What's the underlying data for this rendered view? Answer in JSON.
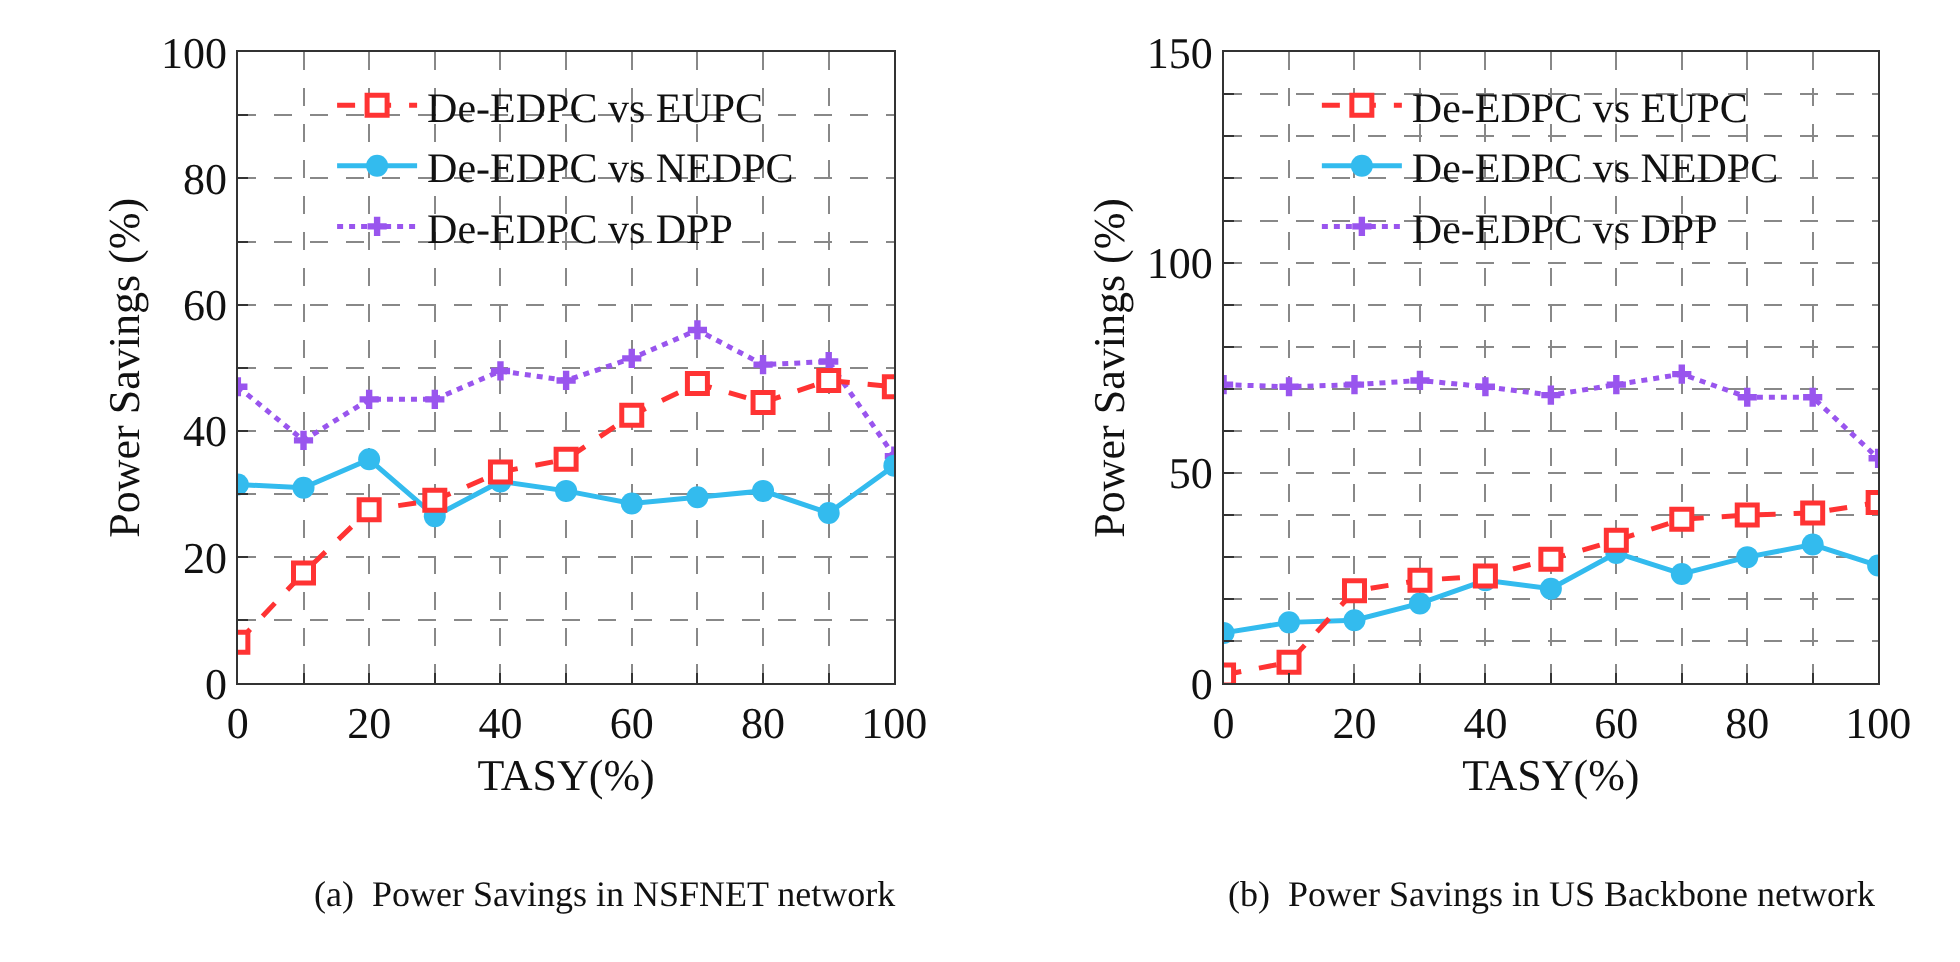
{
  "chart_data": [
    {
      "type": "line",
      "xlabel": "TASY(%)",
      "ylabel": "Power Savings (%)",
      "annotations": [
        "(a)  Power Savings in NSFNET network"
      ],
      "x": [
        0,
        10,
        20,
        30,
        40,
        50,
        60,
        70,
        80,
        90,
        100
      ],
      "xlim": [
        0,
        100
      ],
      "ylim": [
        0,
        100
      ],
      "xticks": [
        0,
        {
          "value": 10,
          "label": null
        },
        20,
        {
          "value": 30,
          "label": null
        },
        40,
        {
          "value": 50,
          "label": null
        },
        60,
        {
          "value": 70,
          "label": null
        },
        80,
        {
          "value": 90,
          "label": null
        },
        100
      ],
      "yticks": [
        0,
        {
          "value": 10,
          "label": null
        },
        20,
        {
          "value": 30,
          "label": null
        },
        40,
        {
          "value": 50,
          "label": null
        },
        60,
        {
          "value": 70,
          "label": null
        },
        80,
        {
          "value": 90,
          "label": null
        },
        100
      ],
      "grid": true,
      "legend": "top",
      "series": [
        {
          "name": "De-EDPC vs EUPC",
          "color": "#ff3333",
          "marker": "square",
          "line_style": "dashed",
          "values": [
            6.5,
            17.5,
            27.5,
            29,
            33.5,
            35.5,
            42.5,
            47.5,
            44.5,
            48,
            47
          ]
        },
        {
          "name": "De-EDPC vs NEDPC",
          "color": "#33bbee",
          "marker": "circle",
          "line_style": "solid",
          "values": [
            31.5,
            31,
            35.5,
            26.5,
            32,
            30.5,
            28.5,
            29.5,
            30.5,
            27,
            34.5
          ]
        },
        {
          "name": "De-EDPC vs DPP",
          "color": "#9955ee",
          "marker": "cross",
          "line_style": "dotted",
          "values": [
            47,
            38.5,
            45,
            45,
            49.5,
            48,
            51.5,
            56,
            50.5,
            51,
            36
          ]
        }
      ]
    },
    {
      "type": "line",
      "xlabel": "TASY(%)",
      "ylabel": "Power Savings (%)",
      "annotations": [
        "(b)  Power Savings in US Backbone network"
      ],
      "x": [
        0,
        10,
        20,
        30,
        40,
        50,
        60,
        70,
        80,
        90,
        100
      ],
      "xlim": [
        0,
        100
      ],
      "ylim": [
        0,
        150
      ],
      "xticks": [
        0,
        {
          "value": 10,
          "label": null
        },
        20,
        {
          "value": 30,
          "label": null
        },
        40,
        {
          "value": 50,
          "label": null
        },
        60,
        {
          "value": 70,
          "label": null
        },
        80,
        {
          "value": 90,
          "label": null
        },
        100
      ],
      "yticks": [
        0,
        {
          "value": 10,
          "label": null
        },
        {
          "value": 20,
          "label": null
        },
        {
          "value": 30,
          "label": null
        },
        {
          "value": 40,
          "label": null
        },
        50,
        {
          "value": 60,
          "label": null
        },
        {
          "value": 70,
          "label": null
        },
        {
          "value": 80,
          "label": null
        },
        {
          "value": 90,
          "label": null
        },
        100,
        {
          "value": 110,
          "label": null
        },
        {
          "value": 120,
          "label": null
        },
        {
          "value": 130,
          "label": null
        },
        {
          "value": 140,
          "label": null
        },
        150
      ],
      "grid": true,
      "legend": "top",
      "series": [
        {
          "name": "De-EDPC vs EUPC",
          "color": "#ff3333",
          "marker": "square",
          "line_style": "dashed",
          "values": [
            2,
            5,
            22,
            24.5,
            25.5,
            29.5,
            34,
            39,
            40,
            40.5,
            43
          ]
        },
        {
          "name": "De-EDPC vs NEDPC",
          "color": "#33bbee",
          "marker": "circle",
          "line_style": "solid",
          "values": [
            12,
            14.5,
            15,
            19,
            24.5,
            22.5,
            31,
            26,
            30,
            33,
            28
          ]
        },
        {
          "name": "De-EDPC vs DPP",
          "color": "#9955ee",
          "marker": "cross",
          "line_style": "dotted",
          "values": [
            71,
            70.5,
            71,
            72,
            70.5,
            68.5,
            71,
            73.5,
            68,
            68,
            53.5
          ]
        }
      ]
    }
  ]
}
